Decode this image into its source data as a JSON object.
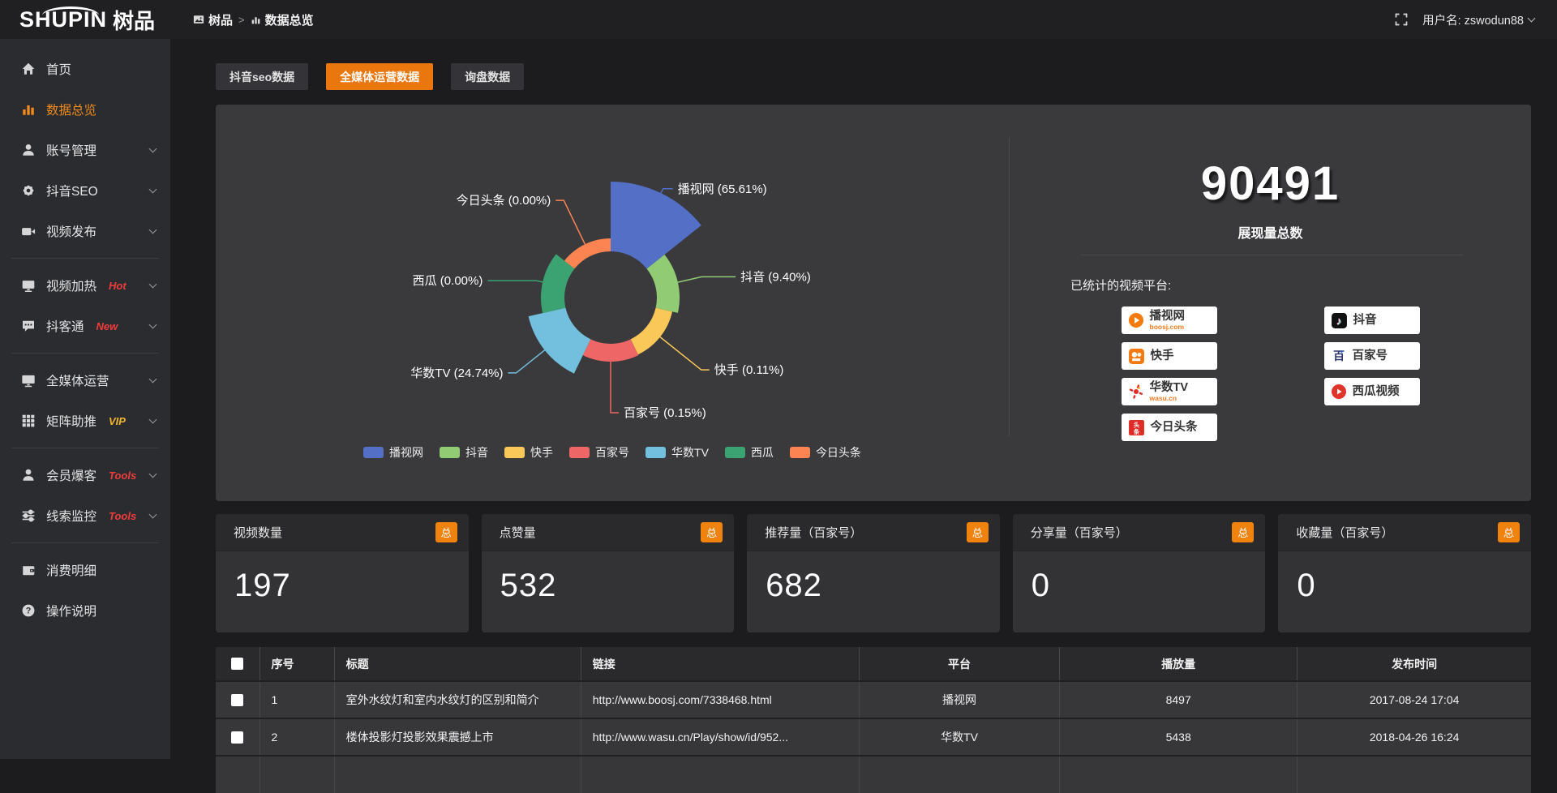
{
  "topbar": {
    "logo_text": "SHUPIN",
    "logo_cn": "树品",
    "breadcrumb_root": "树品",
    "breadcrumb_sep": ">",
    "breadcrumb_current": "数据总览",
    "username": "用户名: zswodun88"
  },
  "sidebar": {
    "items": [
      {
        "icon": "home",
        "label": "首页"
      },
      {
        "icon": "bar-chart",
        "label": "数据总览",
        "active": true
      },
      {
        "icon": "user",
        "label": "账号管理",
        "chevron": true
      },
      {
        "icon": "gear",
        "label": "抖音SEO",
        "chevron": true
      },
      {
        "icon": "camcorder",
        "label": "视频发布",
        "chevron": true
      },
      {
        "divider": true
      },
      {
        "icon": "display",
        "label": "视频加热",
        "badge": "Hot",
        "badge_color": "#f23c3c",
        "chevron": true
      },
      {
        "icon": "chat",
        "label": "抖客通",
        "badge": "New",
        "badge_color": "#f23c3c",
        "chevron": true
      },
      {
        "divider": true
      },
      {
        "icon": "monitor",
        "label": "全媒体运营",
        "chevron": true
      },
      {
        "icon": "grid",
        "label": "矩阵助推",
        "badge": "VIP",
        "badge_color": "#f0b42f",
        "chevron": true
      },
      {
        "divider": true
      },
      {
        "icon": "member",
        "label": "会员爆客",
        "badge": "Tools",
        "badge_color": "#f23c3c",
        "chevron": true
      },
      {
        "icon": "sliders",
        "label": "线索监控",
        "badge": "Tools",
        "badge_color": "#f23c3c",
        "chevron": true
      },
      {
        "divider": true
      },
      {
        "icon": "wallet",
        "label": "消费明细"
      },
      {
        "icon": "question",
        "label": "操作说明"
      }
    ]
  },
  "tabs": [
    {
      "label": "抖音seo数据"
    },
    {
      "label": "全媒体运营数据",
      "active": true
    },
    {
      "label": "询盘数据"
    }
  ],
  "chart_data": {
    "type": "pie",
    "style": "rose",
    "legend_position": "bottom",
    "series": [
      {
        "name": "播视网",
        "value": 65.61,
        "pct": "65.61%",
        "color": "#5470c6"
      },
      {
        "name": "抖音",
        "value": 9.4,
        "pct": "9.40%",
        "color": "#91cc75"
      },
      {
        "name": "快手",
        "value": 0.11,
        "pct": "0.11%",
        "color": "#fac858"
      },
      {
        "name": "百家号",
        "value": 0.15,
        "pct": "0.15%",
        "color": "#ee6666"
      },
      {
        "name": "华数TV",
        "value": 24.74,
        "pct": "24.74%",
        "color": "#73c0de"
      },
      {
        "name": "西瓜",
        "value": 0.0,
        "pct": "0.00%",
        "color": "#3ba272"
      },
      {
        "name": "今日头条",
        "value": 0.0,
        "pct": "0.00%",
        "color": "#fc8452"
      }
    ]
  },
  "overview": {
    "total": "90491",
    "total_label": "展现量总数",
    "platforms_title": "已统计的视频平台:",
    "platform_columns": [
      [
        {
          "name": "播视网",
          "sub": "boosj.com",
          "icon": "boosj"
        },
        {
          "name": "快手",
          "icon": "kuaishou"
        },
        {
          "name": "华数TV",
          "sub": "wasu.cn",
          "icon": "wasu"
        },
        {
          "name": "今日头条",
          "icon": "toutiao"
        }
      ],
      [
        {
          "name": "抖音",
          "icon": "douyin"
        },
        {
          "name": "百家号",
          "icon": "baijiahao"
        },
        {
          "name": "西瓜视频",
          "icon": "xigua"
        }
      ]
    ]
  },
  "stat_cards": [
    {
      "title": "视频数量",
      "badge": "总",
      "value": "197"
    },
    {
      "title": "点赞量",
      "badge": "总",
      "value": "532"
    },
    {
      "title": "推荐量（百家号）",
      "badge": "总",
      "value": "682"
    },
    {
      "title": "分享量（百家号）",
      "badge": "总",
      "value": "0"
    },
    {
      "title": "收藏量（百家号）",
      "badge": "总",
      "value": "0"
    }
  ],
  "table": {
    "headers": [
      "序号",
      "标题",
      "链接",
      "平台",
      "播放量",
      "发布时间"
    ],
    "rows": [
      {
        "no": "1",
        "title": "室外水纹灯和室内水纹灯的区别和简介",
        "link": "http://www.boosj.com/7338468.html",
        "platform": "播视网",
        "plays": "8497",
        "time": "2017-08-24 17:04"
      },
      {
        "no": "2",
        "title": "楼体投影灯投影效果震撼上市",
        "link": "http://www.wasu.cn/Play/show/id/952...",
        "platform": "华数TV",
        "plays": "5438",
        "time": "2018-04-26 16:24"
      }
    ]
  },
  "colors": {
    "accent": "#ea760e",
    "badge_orange": "#f0820e",
    "link_orange": "#e78d2f",
    "hot_red": "#f23c3c",
    "vip_gold": "#f0b42f"
  }
}
